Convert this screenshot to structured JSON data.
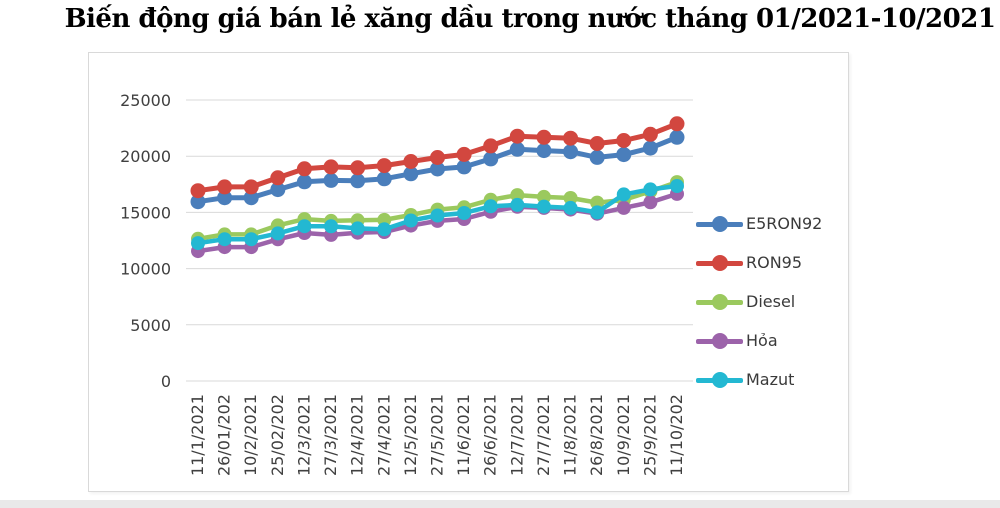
{
  "page": {
    "background": "#ffffff",
    "bottom_strip_color": "#e9e9e9",
    "frame_border_color": "#d9d9d9"
  },
  "chart_data": {
    "type": "line",
    "title": "Biến động giá bán lẻ xăng dầu trong nước tháng 01/2021-10/2021",
    "xlabel": "",
    "ylabel": "",
    "ylim": [
      0,
      25000
    ],
    "ytick_interval": 5000,
    "yticks": [
      "0",
      "5000",
      "10000",
      "15000",
      "20000",
      "25000"
    ],
    "grid": true,
    "legend_position": "right",
    "gridline_color": "#d9d9d9",
    "axis_label_color": "#404040",
    "categories": [
      "11/1/2021",
      "26/01/202",
      "10/2/2021",
      "25/02/202",
      "12/3/2021",
      "27/3/2021",
      "12/4/2021",
      "27/4/2021",
      "12/5/2021",
      "27/5/2021",
      "11/6/2021",
      "26/6/2021",
      "12/7/2021",
      "27/7/2021",
      "11/8/2021",
      "26/8/2021",
      "10/9/2021",
      "25/9/2021",
      "11/10/202"
    ],
    "series": [
      {
        "name": "E5RON92",
        "color": "#4A7EBB",
        "values": [
          15950,
          16310,
          16310,
          17030,
          17720,
          17850,
          17810,
          17990,
          18430,
          18860,
          19050,
          19760,
          20610,
          20500,
          20400,
          19890,
          20140,
          20720,
          21680
        ]
      },
      {
        "name": "RON95",
        "color": "#D2473F",
        "values": [
          16930,
          17270,
          17270,
          18080,
          18880,
          19050,
          18970,
          19160,
          19530,
          19880,
          20160,
          20920,
          21780,
          21680,
          21600,
          21130,
          21400,
          21950,
          22880
        ]
      },
      {
        "name": "Diesel",
        "color": "#9BC95E",
        "values": [
          12650,
          13040,
          13040,
          13840,
          14400,
          14240,
          14300,
          14330,
          14770,
          15250,
          15450,
          16120,
          16540,
          16380,
          16280,
          15870,
          16100,
          16870,
          17700
        ]
      },
      {
        "name": "Hỏa",
        "color": "#9C63AA",
        "values": [
          11560,
          11910,
          11910,
          12610,
          13170,
          13000,
          13190,
          13260,
          13830,
          14240,
          14410,
          15050,
          15500,
          15400,
          15250,
          14880,
          15400,
          15900,
          16650
        ]
      },
      {
        "name": "Mazut",
        "color": "#23B8D2",
        "values": [
          12270,
          12620,
          12620,
          13130,
          13770,
          13760,
          13580,
          13500,
          14280,
          14720,
          14950,
          15540,
          15670,
          15520,
          15400,
          15000,
          16600,
          17050,
          17350
        ]
      }
    ]
  }
}
